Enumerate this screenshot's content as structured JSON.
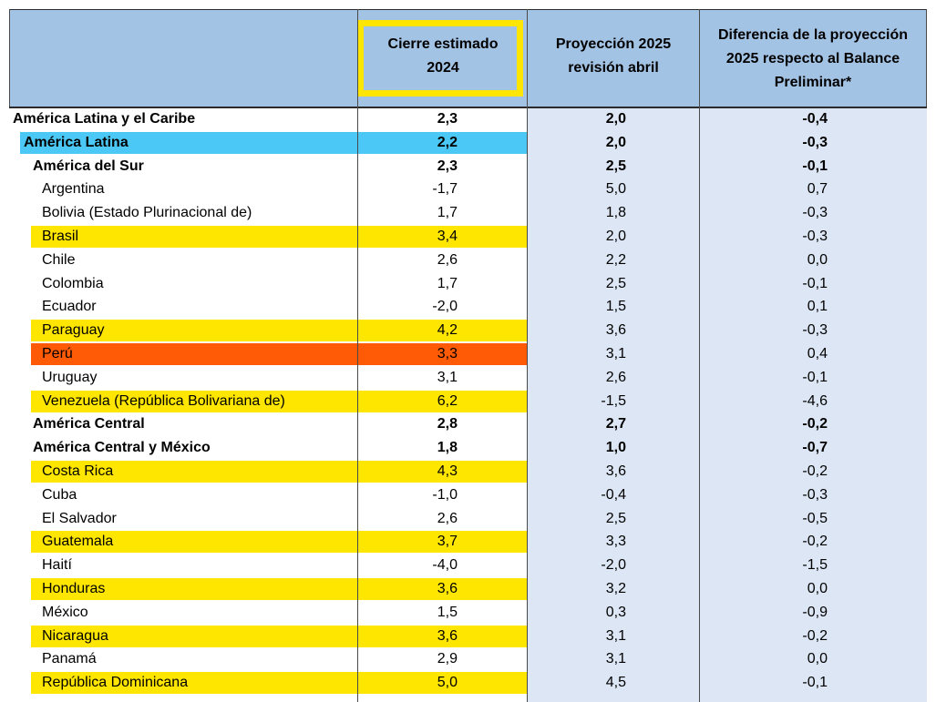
{
  "header": {
    "col_estimate": "Cierre estimado 2024",
    "col_projection": "Proyección 2025 revisión abril",
    "col_difference": "Diferencia de la proyección 2025 respecto al Balance Preliminar*"
  },
  "colors": {
    "header_bg": "#a3c3e5",
    "body_shade": "#dce6f4",
    "highlight_yellow": "#ffe600",
    "highlight_orange": "#ff5a05",
    "highlight_cyan": "#4bc8f5"
  },
  "rows": [
    {
      "name": "América Latina y el Caribe",
      "level": 0,
      "bold": true,
      "highlight": "none",
      "estimate": "2,3",
      "projection": "2,0",
      "difference": "-0,4"
    },
    {
      "name": "América Latina",
      "level": 1,
      "bold": true,
      "highlight": "cyan",
      "estimate": "2,2",
      "projection": "2,0",
      "difference": "-0,3"
    },
    {
      "name": "América del Sur",
      "level": 2,
      "bold": true,
      "highlight": "none",
      "estimate": "2,3",
      "projection": "2,5",
      "difference": "-0,1"
    },
    {
      "name": "Argentina",
      "level": 3,
      "bold": false,
      "highlight": "none",
      "estimate": "-1,7",
      "projection": "5,0",
      "difference": "0,7"
    },
    {
      "name": "Bolivia (Estado Plurinacional de)",
      "level": 3,
      "bold": false,
      "highlight": "none",
      "estimate": "1,7",
      "projection": "1,8",
      "difference": "-0,3"
    },
    {
      "name": "Brasil",
      "level": 3,
      "bold": false,
      "highlight": "yellow",
      "estimate": "3,4",
      "projection": "2,0",
      "difference": "-0,3"
    },
    {
      "name": "Chile",
      "level": 3,
      "bold": false,
      "highlight": "none",
      "estimate": "2,6",
      "projection": "2,2",
      "difference": "0,0"
    },
    {
      "name": "Colombia",
      "level": 3,
      "bold": false,
      "highlight": "none",
      "estimate": "1,7",
      "projection": "2,5",
      "difference": "-0,1"
    },
    {
      "name": "Ecuador",
      "level": 3,
      "bold": false,
      "highlight": "none",
      "estimate": "-2,0",
      "projection": "1,5",
      "difference": "0,1"
    },
    {
      "name": "Paraguay",
      "level": 3,
      "bold": false,
      "highlight": "yellow",
      "estimate": "4,2",
      "projection": "3,6",
      "difference": "-0,3"
    },
    {
      "name": "Perú",
      "level": 3,
      "bold": false,
      "highlight": "orange",
      "estimate": "3,3",
      "projection": "3,1",
      "difference": "0,4"
    },
    {
      "name": "Uruguay",
      "level": 3,
      "bold": false,
      "highlight": "none",
      "estimate": "3,1",
      "projection": "2,6",
      "difference": "-0,1"
    },
    {
      "name": "Venezuela (República Bolivariana de)",
      "level": 3,
      "bold": false,
      "highlight": "yellow",
      "estimate": "6,2",
      "projection": "-1,5",
      "difference": "-4,6"
    },
    {
      "name": "América Central",
      "level": 2,
      "bold": true,
      "highlight": "none",
      "estimate": "2,8",
      "projection": "2,7",
      "difference": "-0,2"
    },
    {
      "name": "América Central y México",
      "level": 2,
      "bold": true,
      "highlight": "none",
      "estimate": "1,8",
      "projection": "1,0",
      "difference": "-0,7"
    },
    {
      "name": "Costa Rica",
      "level": 3,
      "bold": false,
      "highlight": "yellow",
      "estimate": "4,3",
      "projection": "3,6",
      "difference": "-0,2"
    },
    {
      "name": "Cuba",
      "level": 3,
      "bold": false,
      "highlight": "none",
      "estimate": "-1,0",
      "projection": "-0,4",
      "difference": "-0,3"
    },
    {
      "name": "El Salvador",
      "level": 3,
      "bold": false,
      "highlight": "none",
      "estimate": "2,6",
      "projection": "2,5",
      "difference": "-0,5"
    },
    {
      "name": "Guatemala",
      "level": 3,
      "bold": false,
      "highlight": "yellow",
      "estimate": "3,7",
      "projection": "3,3",
      "difference": "-0,2"
    },
    {
      "name": "Haití",
      "level": 3,
      "bold": false,
      "highlight": "none",
      "estimate": "-4,0",
      "projection": "-2,0",
      "difference": "-1,5"
    },
    {
      "name": "Honduras",
      "level": 3,
      "bold": false,
      "highlight": "yellow",
      "estimate": "3,6",
      "projection": "3,2",
      "difference": "0,0"
    },
    {
      "name": "México",
      "level": 3,
      "bold": false,
      "highlight": "none",
      "estimate": "1,5",
      "projection": "0,3",
      "difference": "-0,9"
    },
    {
      "name": "Nicaragua",
      "level": 3,
      "bold": false,
      "highlight": "yellow",
      "estimate": "3,6",
      "projection": "3,1",
      "difference": "-0,2"
    },
    {
      "name": "Panamá",
      "level": 3,
      "bold": false,
      "highlight": "none",
      "estimate": "2,9",
      "projection": "3,1",
      "difference": "0,0"
    },
    {
      "name": "República Dominicana",
      "level": 3,
      "bold": false,
      "highlight": "yellow",
      "estimate": "5,0",
      "projection": "4,5",
      "difference": "-0,1"
    }
  ]
}
